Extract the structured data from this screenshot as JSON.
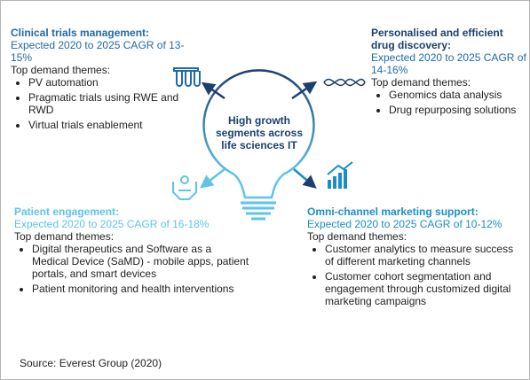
{
  "center": "High growth segments across life sciences IT",
  "segments": [
    {
      "title": "Clinical trials management:",
      "cagr": "Expected 2020 to 2025 CAGR of 13-15%",
      "themes_heading": "Top demand themes:",
      "themes": [
        "PV automation",
        "Pragmatic trials using RWE and RWD",
        "Virtual trials enablement"
      ]
    },
    {
      "title": "Personalised and efficient drug discovery:",
      "cagr": "Expected 2020 to 2025 CAGR of 14-16%",
      "themes_heading": "Top demand themes:",
      "themes": [
        "Genomics data analysis",
        "Drug repurposing solutions"
      ]
    },
    {
      "title": "Patient engagement:",
      "cagr": "Expected 2020 to 2025 CAGR of 16-18%",
      "themes_heading": "Top demand themes:",
      "themes": [
        "Digital therapeutics and Software as a Medical Device (SaMD) - mobile apps, patient portals, and smart devices",
        "Patient monitoring and health interventions"
      ]
    },
    {
      "title": "Omni-channel marketing support:",
      "cagr": "Expected 2020 to 2025 CAGR of 10-12%",
      "themes_heading": "Top demand themes:",
      "themes": [
        "Customer analytics to measure success of different marketing channels",
        "Customer cohort segmentation and engagement through customized digital marketing campaigns"
      ]
    }
  ],
  "source": "Source: Everest Group (2020)"
}
